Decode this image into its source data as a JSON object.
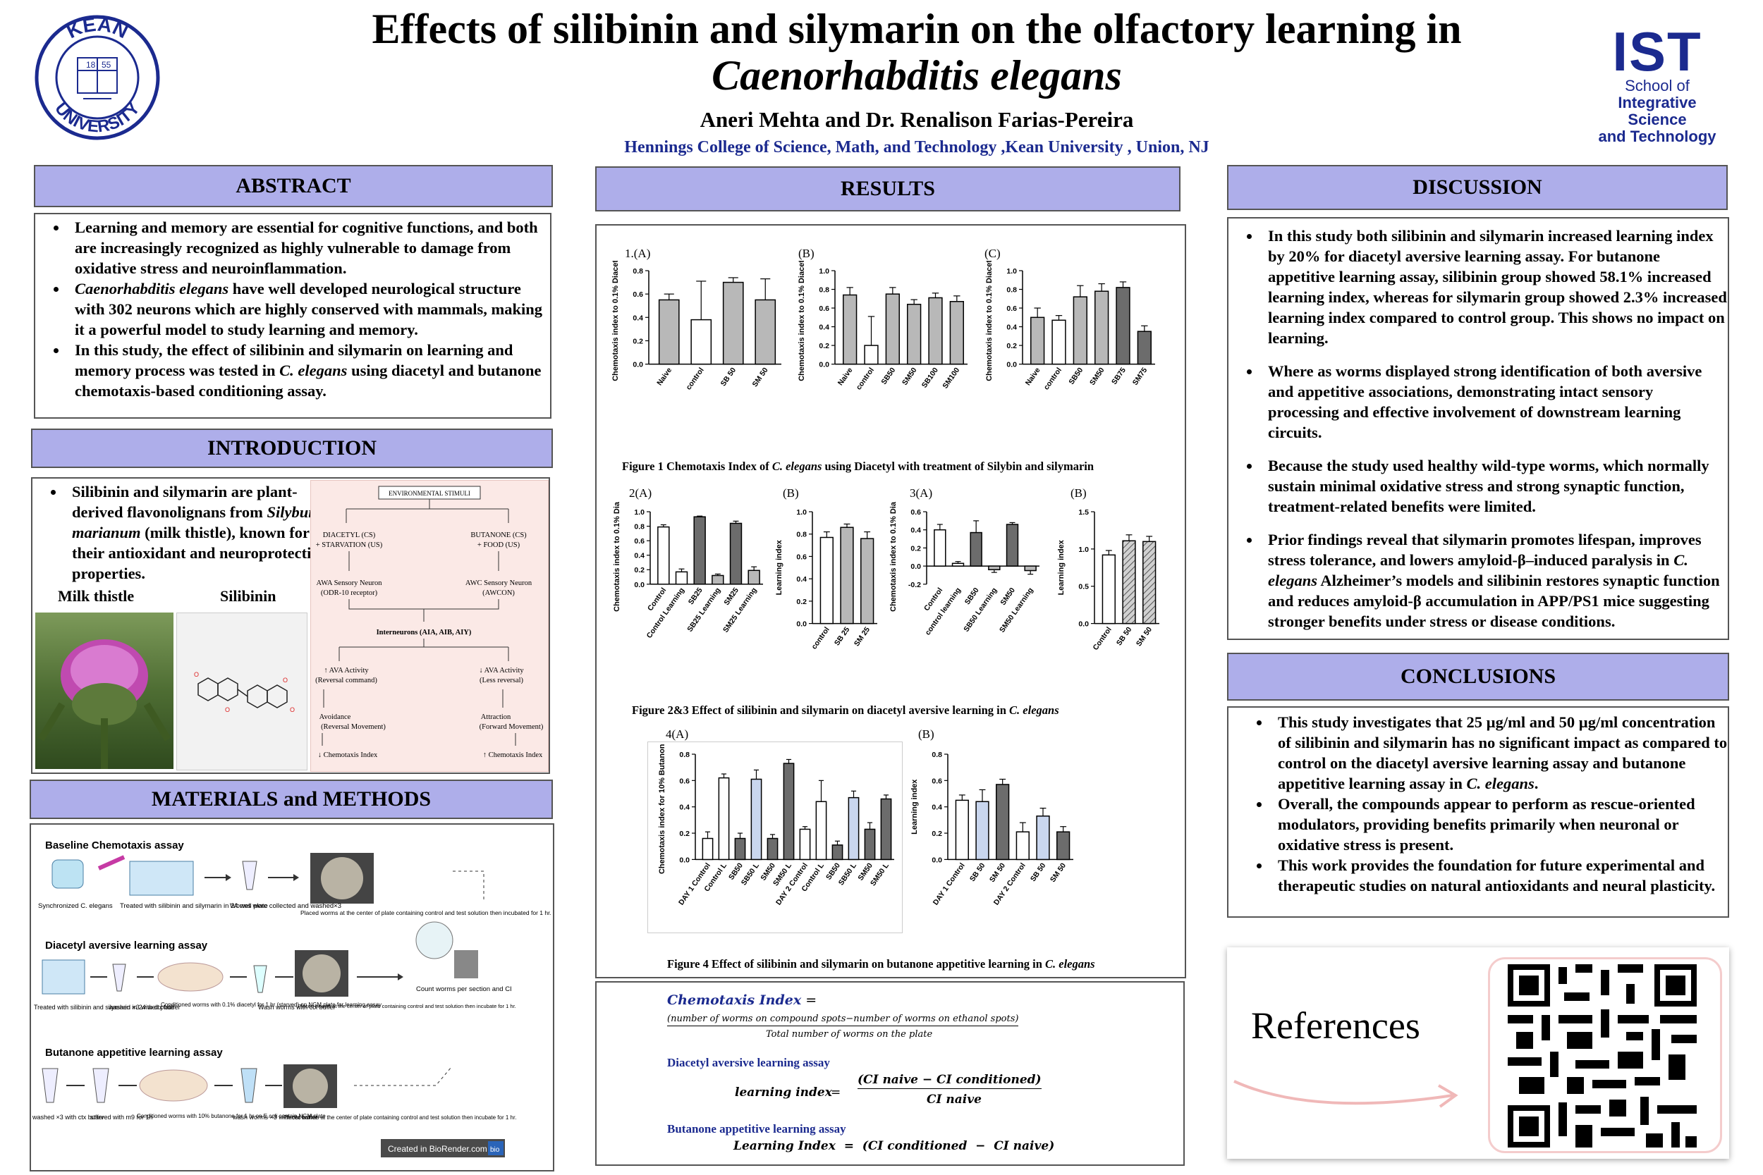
{
  "title_line1": "Effects of silibinin and silymarin on the olfactory learning in",
  "title_line2": "Caenorhabditis elegans",
  "authors": "Aneri Mehta and Dr. Renalison Farias-Pereira",
  "affiliation": "Hennings College of Science, Math, and Technology ,Kean University , Union, NJ",
  "logo_left": {
    "top": "KEAN",
    "bottom": "UNIVERSITY",
    "year_l": "18",
    "year_r": "55"
  },
  "logo_right": {
    "big": "IST",
    "l1": "School of",
    "l2": "Integrative Science",
    "l3": "and Technology"
  },
  "sections": {
    "abstract": "ABSTRACT",
    "introduction": "INTRODUCTION",
    "methods": "MATERIALS and METHODS",
    "results": "RESULTS",
    "discussion": "DISCUSSION",
    "conclusions": "CONCLUSIONS"
  },
  "abstract": [
    "Learning and memory are essential for cognitive functions, and both are increasingly recognized as highly vulnerable to damage from oxidative stress and neuroinflammation.",
    "Caenorhabditis elegans have well developed neurological structure with 302 neurons which are highly conserved with mammals, making it a powerful model to study learning and memory.",
    "In this study, the effect of silibinin and silymarin on learning and memory process was tested in C. elegans using diacetyl and butanone chemotaxis-based conditioning assay."
  ],
  "intro": {
    "text": "Silibinin and silymarin are plant-derived flavonolignans from Silybum marianum (milk thistle), known for their antioxidant and neuroprotective properties.",
    "img1": "Milk thistle",
    "img2": "Silibinin",
    "flow": {
      "stimuli": "ENVIRONMENTAL STIMULI",
      "cs1": "DIACETYL (CS)",
      "us1": "+ STARVATION (US)",
      "cs2": "BUTANONE (CS)",
      "us2": "+ FOOD (US)",
      "n1a": "AWA Sensory Neuron",
      "n1b": "(ODR-10 receptor)",
      "n2a": "AWC Sensory Neuron",
      "n2b": "(AWCON)",
      "inter": "Interneurons (AIA, AIB, AIY)",
      "ava1a": "↑ AVA Activity",
      "ava1b": "(Reversal command)",
      "ava2a": "↓ AVA Activity",
      "ava2b": "(Less reversal)",
      "out1a": "Avoidance",
      "out1b": "(Reversal Movement)",
      "out2a": "Attraction",
      "out2b": "(Forward Movement)",
      "ci1": "↓ Chemotaxis Index",
      "ci2": "↑ Chemotaxis Index"
    }
  },
  "methods": {
    "baseline": "Baseline Chemotaxis assay",
    "b1": "Synchronized C. elegans",
    "b2": "Treated with silibinin and silymarin in 24 well plate",
    "b3": "Worms were collected and washed×3",
    "b4": "Placed worms at the center of plate containing control and test solution then incubated for 1 hr.",
    "diacetyl": "Diacetyl aversive learning assay",
    "d1": "Treated with silibinin and silymarin in 24 well plate",
    "d2": "washed ×3 with ctx buffer",
    "d3": "Conditioned worms with 0.1% diacetyl for 1 hr (starved) on NGM plate for learning assay",
    "d4": "Wash worms with ctx buffer",
    "d5": "Placed worms at the center of plate containing control and test solution then incubate for 1 hr.",
    "count": "Count worms per section and CI",
    "butanone": "Butanone appetitive learning assay",
    "u1": "washed ×3 with ctx buffer",
    "u2": "starved with m9 for 1h",
    "u3": "Conditioned worms with 10% butanone for 1 hr on E.coli contain NGM plate",
    "u4": "wash worms ×3 with ctx buffer",
    "u5": "Placed worms at the center of plate containing control and test solution then incubate for 1 hr.",
    "credit": "Created in BioRender.com",
    "credit_logo": "bio"
  },
  "fig1": {
    "labels": [
      "1.(A)",
      "(B)",
      "(C)"
    ],
    "caption_a": "Figure 1 Chemotaxis Index of ",
    "caption_i": "C. elegans",
    "caption_b": " using Diacetyl with treatment of Silybin and silymarin"
  },
  "fig23": {
    "labels": [
      "2(A)",
      "(B)",
      "3(A)",
      "(B)"
    ],
    "caption_a": "Figure 2&3 Effect of silibinin and silymarin on diacetyl aversive learning  in ",
    "caption_i": "C. elegans"
  },
  "fig4": {
    "labels": [
      "4(A)",
      "(B)"
    ],
    "caption_a": "Figure 4 Effect of silibinin and silymarin on butanone appetitive learning  in ",
    "caption_i": "C. elegans"
  },
  "chart_data": [
    {
      "id": "1A",
      "type": "bar",
      "ylabel": "Chemotaxis index to 0.1% Diacetyl",
      "ylim": [
        0,
        0.8
      ],
      "ticks": [
        "0.0",
        "0.2",
        "0.4",
        "0.6",
        "0.8"
      ],
      "categories": [
        "Naive",
        "control",
        "SB 50",
        "SM 50"
      ],
      "values": [
        0.55,
        0.38,
        0.7,
        0.55
      ],
      "errors": [
        0.05,
        0.33,
        0.04,
        0.18
      ],
      "fills": [
        "gray",
        "white",
        "gray",
        "gray"
      ]
    },
    {
      "id": "1B",
      "type": "bar",
      "ylabel": "Chemotaxis index to 0.1% Diacetyl",
      "ylim": [
        0,
        1.0
      ],
      "ticks": [
        "0.0",
        "0.2",
        "0.4",
        "0.6",
        "0.8",
        "1.0"
      ],
      "categories": [
        "Naive",
        "control",
        "SB50",
        "SM50",
        "SB100",
        "SM100"
      ],
      "values": [
        0.74,
        0.2,
        0.75,
        0.64,
        0.71,
        0.67
      ],
      "errors": [
        0.08,
        0.31,
        0.07,
        0.05,
        0.05,
        0.06
      ],
      "fills": [
        "gray",
        "white",
        "gray",
        "gray",
        "gray",
        "gray"
      ]
    },
    {
      "id": "1C",
      "type": "bar",
      "ylabel": "Chemotaxis index to 0.1% Diacetyl",
      "ylim": [
        0,
        1.0
      ],
      "ticks": [
        "0.0",
        "0.2",
        "0.4",
        "0.6",
        "0.8",
        "1.0"
      ],
      "categories": [
        "Naive",
        "control",
        "SB50",
        "SM50",
        "SB75",
        "SM75"
      ],
      "values": [
        0.5,
        0.47,
        0.72,
        0.78,
        0.82,
        0.35
      ],
      "errors": [
        0.1,
        0.05,
        0.12,
        0.08,
        0.06,
        0.06
      ],
      "fills": [
        "gray",
        "white",
        "gray",
        "gray",
        "dark",
        "dark"
      ]
    },
    {
      "id": "2A",
      "type": "bar",
      "ylabel": "Chemotaxis index to  0.1% Diacetyl",
      "ylim": [
        0,
        1.0
      ],
      "ticks": [
        "0.0",
        "0.2",
        "0.4",
        "0.6",
        "0.8",
        "1.0"
      ],
      "categories": [
        "Control",
        "Control Learning",
        "SB25",
        "SB25 Learning",
        "SM25",
        "SM25 Learning"
      ],
      "values": [
        0.79,
        0.17,
        0.93,
        0.12,
        0.84,
        0.19
      ],
      "errors": [
        0.03,
        0.04,
        0.01,
        0.02,
        0.03,
        0.05
      ],
      "fills": [
        "white",
        "white",
        "dark",
        "gray",
        "dark",
        "gray"
      ]
    },
    {
      "id": "2B",
      "type": "bar",
      "ylabel": "Learning index",
      "ylim": [
        0,
        1.0
      ],
      "ticks": [
        "0.0",
        "0.2",
        "0.4",
        "0.6",
        "0.8",
        "1.0"
      ],
      "categories": [
        "control",
        "SB 25",
        "SM 25"
      ],
      "values": [
        0.77,
        0.86,
        0.76
      ],
      "errors": [
        0.05,
        0.03,
        0.06
      ],
      "fills": [
        "white",
        "gray",
        "gray"
      ]
    },
    {
      "id": "3A",
      "type": "bar",
      "ylabel": "Chemotaxis index to  0.1% Diacetyl",
      "ylim": [
        -0.2,
        0.6
      ],
      "ticks": [
        "-0.2",
        "0.0",
        "0.2",
        "0.4",
        "0.6"
      ],
      "categories": [
        "Control",
        "control learning",
        "SB50",
        "SB50 Learning",
        "SM50",
        "SM50 Learning"
      ],
      "values": [
        0.4,
        0.03,
        0.37,
        -0.04,
        0.46,
        -0.05
      ],
      "errors": [
        0.06,
        0.02,
        0.13,
        0.03,
        0.02,
        0.04
      ],
      "fills": [
        "white",
        "white",
        "dark",
        "gray",
        "dark",
        "gray"
      ]
    },
    {
      "id": "3B",
      "type": "bar",
      "ylabel": "Learning index",
      "ylim": [
        0,
        1.5
      ],
      "ticks": [
        "0.0",
        "0.5",
        "1.0",
        "1.5"
      ],
      "categories": [
        "Control",
        "SB 50",
        "SM 50"
      ],
      "values": [
        0.92,
        1.11,
        1.1
      ],
      "errors": [
        0.06,
        0.08,
        0.07
      ],
      "fills": [
        "white",
        "hatch",
        "hatch"
      ]
    },
    {
      "id": "4A",
      "type": "bar",
      "ylabel": "Chemotaxis index for 10% Butanone",
      "ylim": [
        0,
        0.8
      ],
      "ticks": [
        "0.0",
        "0.2",
        "0.4",
        "0.6",
        "0.8"
      ],
      "categories": [
        "DAY 1 Control",
        "Control L",
        "SB50",
        "SB50 L",
        "SM50",
        "SM50 L",
        "DAY 2 Control",
        "Control L",
        "SB50",
        "SB50 L",
        "SM50",
        "SM50 L"
      ],
      "values": [
        0.16,
        0.62,
        0.16,
        0.61,
        0.16,
        0.73,
        0.23,
        0.44,
        0.11,
        0.47,
        0.23,
        0.46
      ],
      "errors": [
        0.05,
        0.03,
        0.04,
        0.07,
        0.03,
        0.03,
        0.02,
        0.16,
        0.03,
        0.05,
        0.05,
        0.03
      ],
      "fills": [
        "white",
        "white",
        "dark",
        "blue",
        "dark",
        "dark",
        "white",
        "white",
        "dark",
        "blue",
        "dark",
        "dark"
      ]
    },
    {
      "id": "4B",
      "type": "bar",
      "ylabel": "Learning index",
      "ylim": [
        0,
        0.8
      ],
      "ticks": [
        "0.0",
        "0.2",
        "0.4",
        "0.6",
        "0.8"
      ],
      "categories": [
        "DAY 1 Control",
        "SB 50",
        "SM 50",
        "DAY 2 Control",
        "SB 50",
        "SM 50"
      ],
      "values": [
        0.45,
        0.44,
        0.57,
        0.21,
        0.33,
        0.21
      ],
      "errors": [
        0.04,
        0.09,
        0.04,
        0.07,
        0.06,
        0.04
      ],
      "fills": [
        "white",
        "blue",
        "dark",
        "white",
        "blue",
        "dark"
      ]
    }
  ],
  "formulas": {
    "ci_name": "Chemotaxis Index",
    "eq": " =",
    "ci_num": "(number of worms on compound spots−number of worms on ethanol spots)",
    "ci_den": "Total number of worms on the plate",
    "diacetyl": "Diacetyl aversive learning assay",
    "li": "learning index",
    "li_eq": "=",
    "li_num": "(CI naive  −  CI conditioned)",
    "li_den": "CI naive",
    "butanone": "Butanone appetitive learning assay",
    "li2": "Learning Index  =  (CI conditioned  −  CI naive)"
  },
  "discussion": [
    "In this study both silibinin and silymarin increased learning index by 20% for diacetyl aversive learning assay. For butanone appetitive learning assay, silibinin group showed 58.1% increased learning index, whereas for silymarin group showed 2.3% increased learning index compared to control group. This shows no impact on learning.",
    " Where as worms displayed strong identification of both aversive and appetitive associations, demonstrating intact sensory processing and effective involvement of downstream learning circuits.",
    "Because the study used healthy wild-type worms, which normally sustain minimal oxidative stress and strong synaptic function, treatment-related benefits were limited.",
    "Prior findings reveal that silymarin promotes lifespan, improves stress tolerance, and lowers amyloid-β–induced paralysis in C. elegans Alzheimer’s models and silibinin restores synaptic function and reduces amyloid-β accumulation in APP/PS1 mice suggesting stronger benefits under stress or disease conditions."
  ],
  "conclusions": [
    "This study investigates that 25 µg/ml and 50 µg/ml concentration of silibinin and silymarin has no significant impact as compared to control on the diacetyl aversive learning assay and butanone appetitive learning assay in C. elegans.",
    "Overall, the compounds appear to perform as rescue-oriented modulators, providing benefits primarily when neuronal or oxidative stress is present.",
    "This work provides the foundation for future experimental and therapeutic studies on natural antioxidants and neural plasticity."
  ],
  "references": "References",
  "colors": {
    "header_fill": "#aeaeea",
    "navy": "#1b2a8f",
    "bar_gray": "#b8b8b8",
    "bar_dark": "#6c6c6c",
    "bar_blue": "#c9d6ee"
  }
}
